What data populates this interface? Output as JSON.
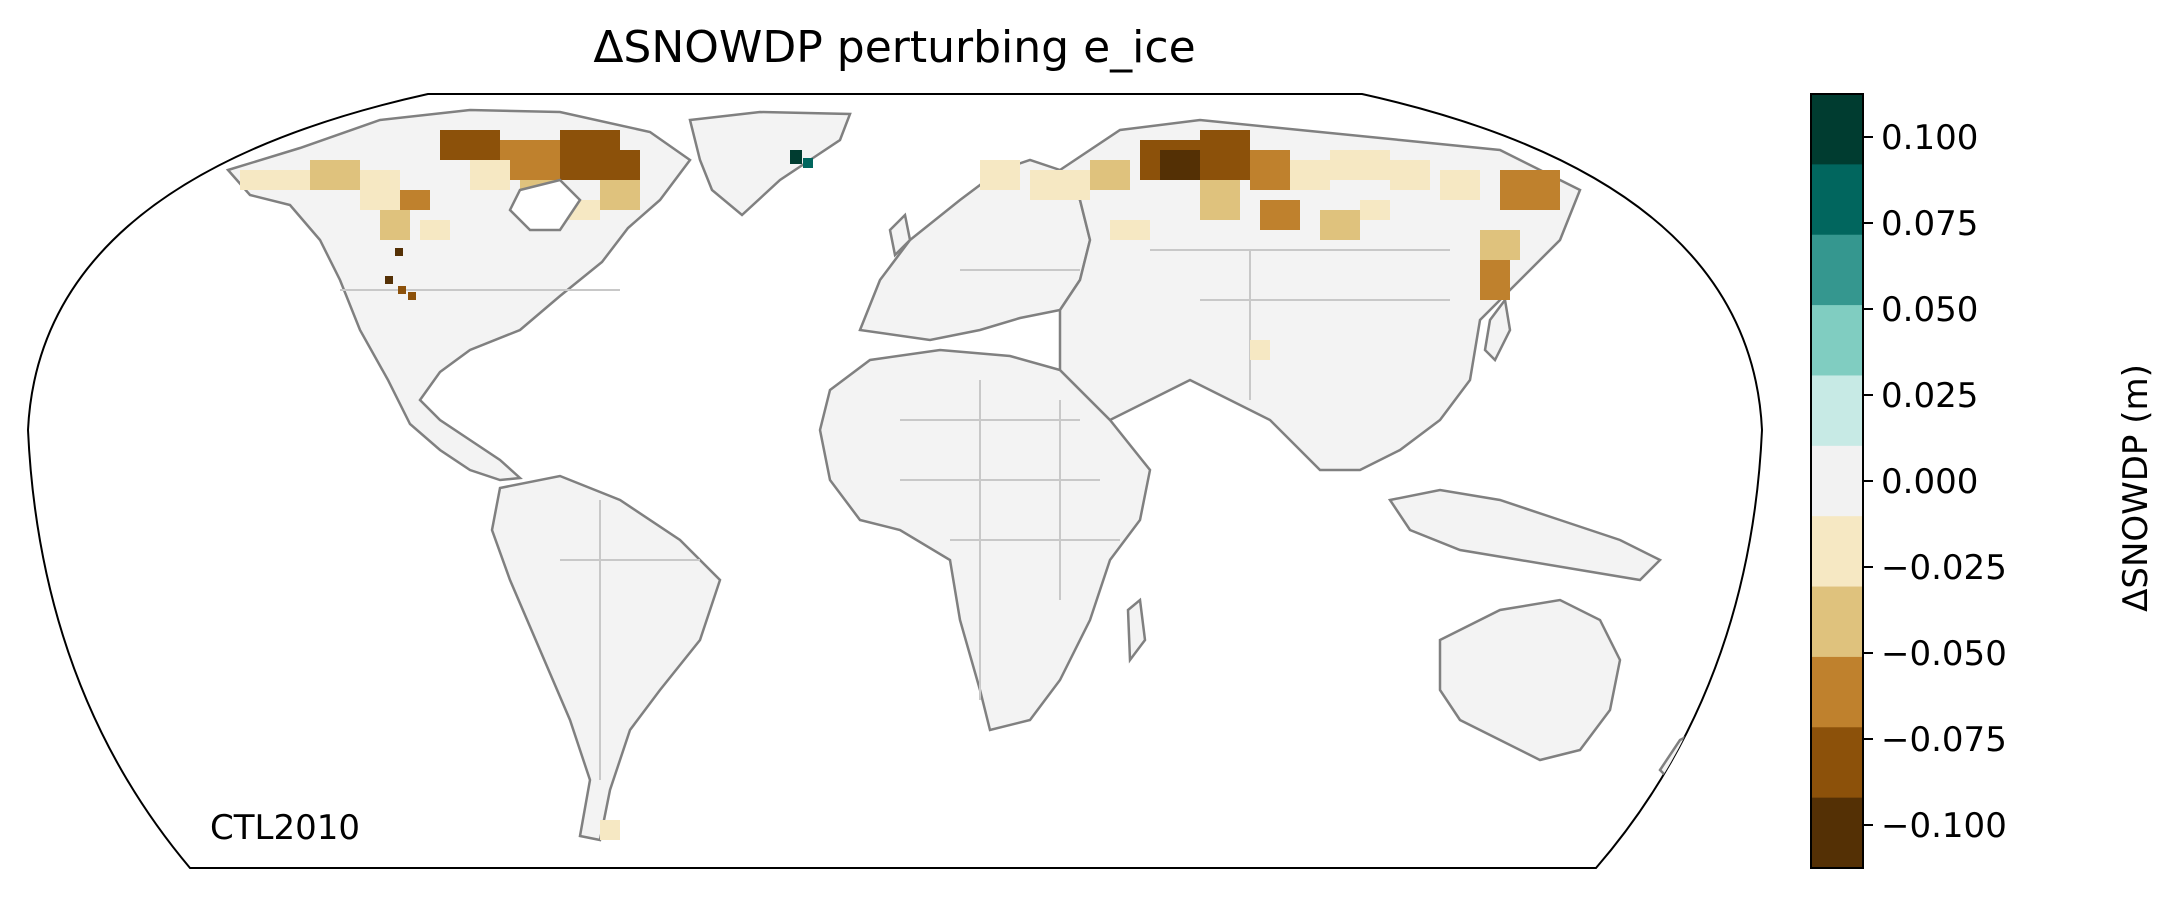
{
  "title": "ΔSNOWDP perturbing e_ice",
  "annotation": "CTL2010",
  "colorbar": {
    "label": "ΔSNOWDP (m)",
    "ticks": [
      "0.100",
      "0.075",
      "0.050",
      "0.025",
      "0.000",
      "−0.025",
      "−0.050",
      "−0.075",
      "−0.100"
    ],
    "tick_values": [
      0.1,
      0.075,
      0.05,
      0.025,
      0.0,
      -0.025,
      -0.05,
      -0.075,
      -0.1
    ],
    "bins": [
      {
        "min": 0.0875,
        "max": 0.1125,
        "color": "#003c30"
      },
      {
        "min": 0.0625,
        "max": 0.0875,
        "color": "#01665e"
      },
      {
        "min": 0.0375,
        "max": 0.0625,
        "color": "#35978f"
      },
      {
        "min": 0.0125,
        "max": 0.0375,
        "color": "#80cdc1"
      },
      {
        "min": 0.0,
        "max": 0.0125,
        "color": "#c7eae5"
      },
      {
        "min": -0.0125,
        "max": 0.0,
        "color": "#f2f2f2"
      },
      {
        "min": -0.0375,
        "max": -0.0125,
        "color": "#f6e8c3"
      },
      {
        "min": -0.0625,
        "max": -0.0375,
        "color": "#dfc27d"
      },
      {
        "min": -0.0875,
        "max": -0.0625,
        "color": "#bf812d"
      },
      {
        "min": -0.1125,
        "max": -0.0875,
        "color": "#8c510a"
      },
      {
        "min": -0.1125,
        "max": -0.1125,
        "color": "#543005"
      }
    ]
  },
  "map": {
    "projection": "robinson",
    "land_color": "#f3f3f3",
    "coastline_color": "#808080",
    "border_color": "#c8c8c8",
    "outline_color": "#000000"
  }
}
